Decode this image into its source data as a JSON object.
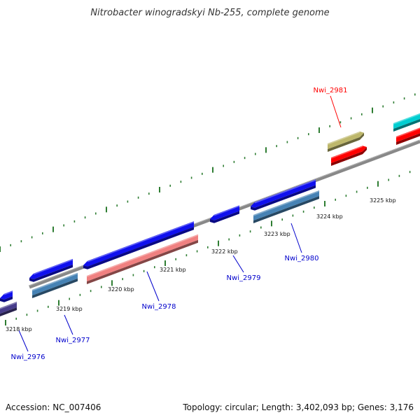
{
  "title": "Nitrobacter winogradskyi Nb-255, complete genome",
  "footer": {
    "accession": "Accession: NC_007406",
    "topology": "Topology: circular; Length: 3,402,093 bp; Genes: 3,176"
  },
  "colors": {
    "backbone": "#808080",
    "tick": "#2e7d32",
    "label_blue": "#0000cc",
    "label_red": "#ff0000"
  },
  "kbp_labels": [
    "3218 kbp",
    "3219 kbp",
    "3220 kbp",
    "3221 kbp",
    "3222 kbp",
    "3223 kbp",
    "3224 kbp",
    "3225 kbp"
  ],
  "gene_labels": [
    {
      "id": "g2976",
      "text": "Nwi_2976",
      "color": "#0000cc"
    },
    {
      "id": "g2977",
      "text": "Nwi_2977",
      "color": "#0000cc"
    },
    {
      "id": "g2978",
      "text": "Nwi_2978",
      "color": "#0000cc"
    },
    {
      "id": "g2979",
      "text": "Nwi_2979",
      "color": "#0000cc"
    },
    {
      "id": "g2980",
      "text": "Nwi_2980",
      "color": "#0000cc"
    },
    {
      "id": "g2981",
      "text": "Nwi_2981",
      "color": "#ff0000"
    }
  ],
  "features": [
    {
      "id": "f1",
      "color": "#1010ee"
    },
    {
      "id": "f2",
      "color": "#483d8b"
    },
    {
      "id": "f3",
      "color": "#1010ee"
    },
    {
      "id": "f4",
      "color": "#4682b4"
    },
    {
      "id": "f5",
      "color": "#1010ee"
    },
    {
      "id": "f6",
      "color": "#f08080"
    },
    {
      "id": "f7",
      "color": "#1010ee"
    },
    {
      "id": "f8",
      "color": "#1010ee"
    },
    {
      "id": "f9",
      "color": "#4682b4"
    },
    {
      "id": "f10",
      "color": "#bdb76b"
    },
    {
      "id": "f11",
      "color": "#ff0000"
    },
    {
      "id": "f12",
      "color": "#00ced1"
    },
    {
      "id": "f13",
      "color": "#ff0000"
    }
  ]
}
